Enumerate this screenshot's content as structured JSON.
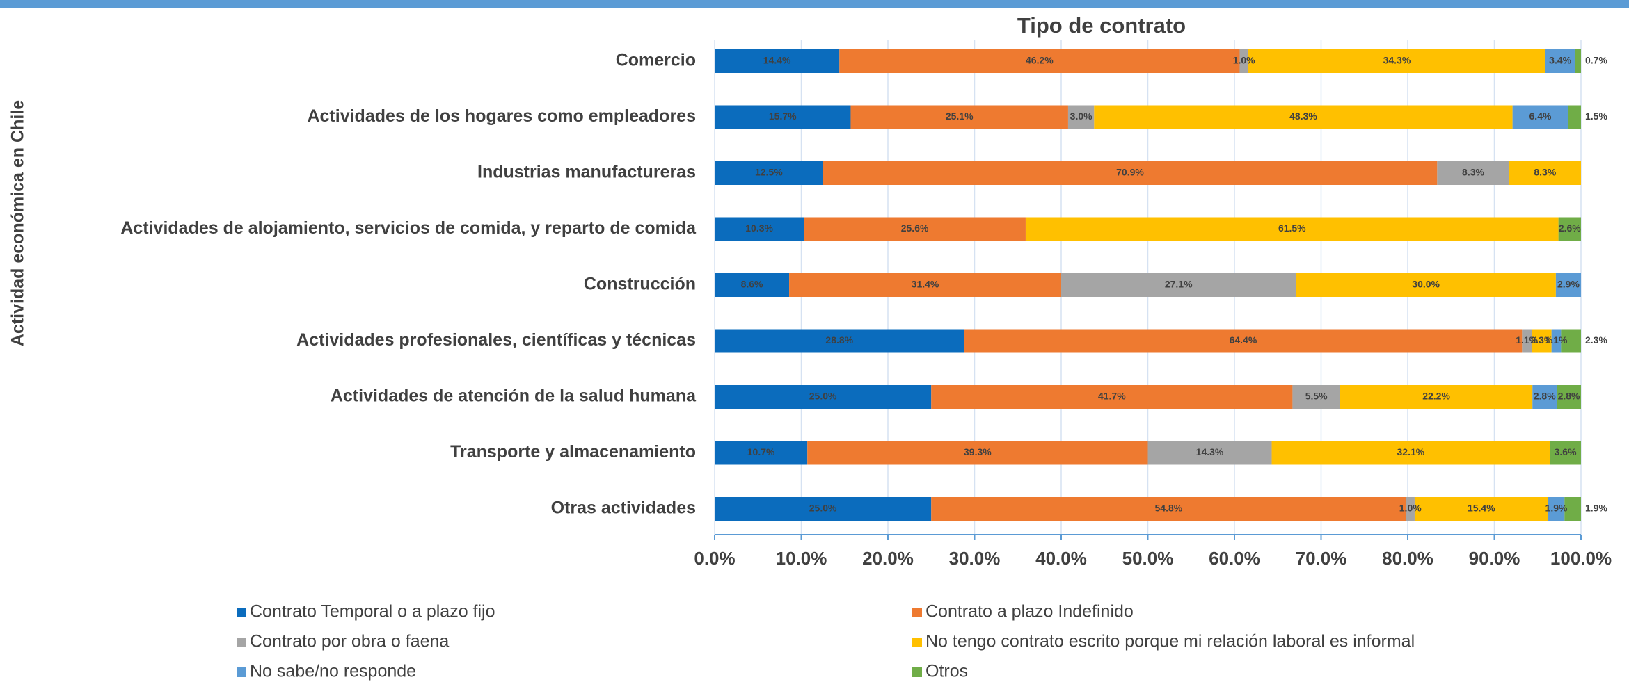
{
  "chart_data": {
    "type": "stacked-bar-horizontal",
    "title": "Tipo de contrato",
    "y_label": "Actividad económica en Chile",
    "categories": [
      "Comercio",
      "Actividades de los hogares como empleadores",
      "Industrias manufactureras",
      "Actividades de alojamiento, servicios de comida, y reparto de comida",
      "Construcción",
      "Actividades profesionales, científicas y técnicas",
      "Actividades de atención de la salud humana",
      "Transporte y almacenamiento",
      "Otras actividades"
    ],
    "series": [
      {
        "name": "Contrato Temporal o a plazo fijo",
        "color": "#0b6cbd",
        "values": [
          14.4,
          15.7,
          12.5,
          10.3,
          8.6,
          28.8,
          25.0,
          10.7,
          25.0
        ],
        "value_labels": [
          "14.4%",
          "15.7%",
          "12.5%",
          "10.3%",
          "8.6%",
          "28.8%",
          "25.0%",
          "10.7%",
          "25.0%"
        ]
      },
      {
        "name": "Contrato a plazo Indefinido",
        "color": "#ee7a30",
        "values": [
          46.2,
          25.1,
          70.9,
          25.6,
          31.4,
          64.4,
          41.7,
          39.3,
          54.8
        ],
        "value_labels": [
          "46.2%",
          "25.1%",
          "70.9%",
          "25.6%",
          "31.4%",
          "64.4%",
          "41.7%",
          "39.3%",
          "54.8%"
        ]
      },
      {
        "name": "Contrato por obra o faena",
        "color": "#a5a5a5",
        "values": [
          1.0,
          3.0,
          8.3,
          null,
          27.1,
          1.1,
          5.5,
          14.3,
          1.0
        ],
        "value_labels": [
          "1.0%",
          "3.0%",
          "8.3%",
          null,
          "27.1%",
          "1.1%",
          "5.5%",
          "14.3%",
          "1.0%"
        ]
      },
      {
        "name": "No tengo contrato escrito porque mi relación laboral es informal",
        "color": "#ffc000",
        "values": [
          34.3,
          48.3,
          8.3,
          61.5,
          30.0,
          2.3,
          22.2,
          32.1,
          15.4
        ],
        "value_labels": [
          "34.3%",
          "48.3%",
          "8.3%",
          "61.5%",
          "30.0%",
          "2.3%",
          "22.2%",
          "32.1%",
          "15.4%"
        ]
      },
      {
        "name": "No sabe/no responde",
        "color": "#5b9bd5",
        "values": [
          3.4,
          6.4,
          null,
          null,
          2.9,
          1.1,
          2.8,
          null,
          1.9
        ],
        "value_labels": [
          "3.4%",
          "6.4%",
          null,
          null,
          "2.9%",
          "1.1%",
          "2.8%",
          null,
          "1.9%"
        ]
      },
      {
        "name": "Otros",
        "color": "#70ad47",
        "values": [
          0.7,
          1.5,
          null,
          2.6,
          null,
          2.3,
          2.8,
          3.6,
          1.9
        ],
        "value_labels": [
          "0.7%",
          "1.5%",
          null,
          "2.6%",
          null,
          "2.3%",
          "2.8%",
          "3.6%",
          "1.9%"
        ]
      }
    ],
    "xlim": [
      0,
      100
    ],
    "xticks": [
      {
        "value": 0,
        "label": "0.0%"
      },
      {
        "value": 10,
        "label": "10.0%"
      },
      {
        "value": 20,
        "label": "20.0%"
      },
      {
        "value": 30,
        "label": "30.0%"
      },
      {
        "value": 40,
        "label": "40.0%"
      },
      {
        "value": 50,
        "label": "50.0%"
      },
      {
        "value": 60,
        "label": "60.0%"
      },
      {
        "value": 70,
        "label": "70.0%"
      },
      {
        "value": 80,
        "label": "80.0%"
      },
      {
        "value": 90,
        "label": "90.0%"
      },
      {
        "value": 100,
        "label": "100.0%"
      }
    ],
    "grid": true
  }
}
